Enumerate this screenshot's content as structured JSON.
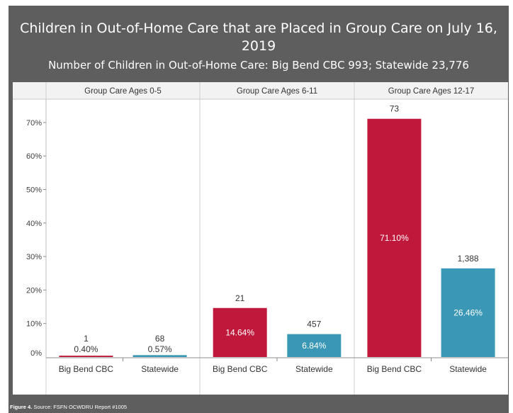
{
  "title": "Children in Out-of-Home Care that are Placed in Group Care on July 16, 2019",
  "subtitle": "Number of Children in Out-of-Home Care: Big Bend CBC 993; Statewide 23,776",
  "footer": {
    "figure_label": "Figure 4.",
    "source": "Source: FSFN OCWDRU Report #1005"
  },
  "colors": {
    "big_bend": "#c0183a",
    "statewide": "#3a98b6",
    "frame": "#5e5e5e",
    "panel_header": "#f2f2f2"
  },
  "chart_data": {
    "type": "bar",
    "title": "Children in Out-of-Home Care that are Placed in Group Care on July 16, 2019",
    "subtitle": "Number of Children in Out-of-Home Care: Big Bend CBC 993; Statewide 23,776",
    "ylim": [
      0,
      80
    ],
    "yticks": [
      0,
      10,
      20,
      30,
      40,
      50,
      60,
      70
    ],
    "ytick_labels": [
      "0%",
      "10%",
      "20%",
      "30%",
      "40%",
      "50%",
      "60%",
      "70%"
    ],
    "grid": false,
    "categories": [
      "Big Bend CBC",
      "Statewide"
    ],
    "panels": [
      {
        "label": "Group Care Ages 0-5",
        "bars": [
          {
            "category": "Big Bend CBC",
            "percent": 0.4,
            "percent_label": "0.40%",
            "count_label": "1"
          },
          {
            "category": "Statewide",
            "percent": 0.57,
            "percent_label": "0.57%",
            "count_label": "68"
          }
        ]
      },
      {
        "label": "Group Care Ages 6-11",
        "bars": [
          {
            "category": "Big Bend CBC",
            "percent": 14.64,
            "percent_label": "14.64%",
            "count_label": "21"
          },
          {
            "category": "Statewide",
            "percent": 6.84,
            "percent_label": "6.84%",
            "count_label": "457"
          }
        ]
      },
      {
        "label": "Group Care Ages 12-17",
        "bars": [
          {
            "category": "Big Bend CBC",
            "percent": 71.1,
            "percent_label": "71.10%",
            "count_label": "73"
          },
          {
            "category": "Statewide",
            "percent": 26.46,
            "percent_label": "26.46%",
            "count_label": "1,388"
          }
        ]
      }
    ]
  }
}
